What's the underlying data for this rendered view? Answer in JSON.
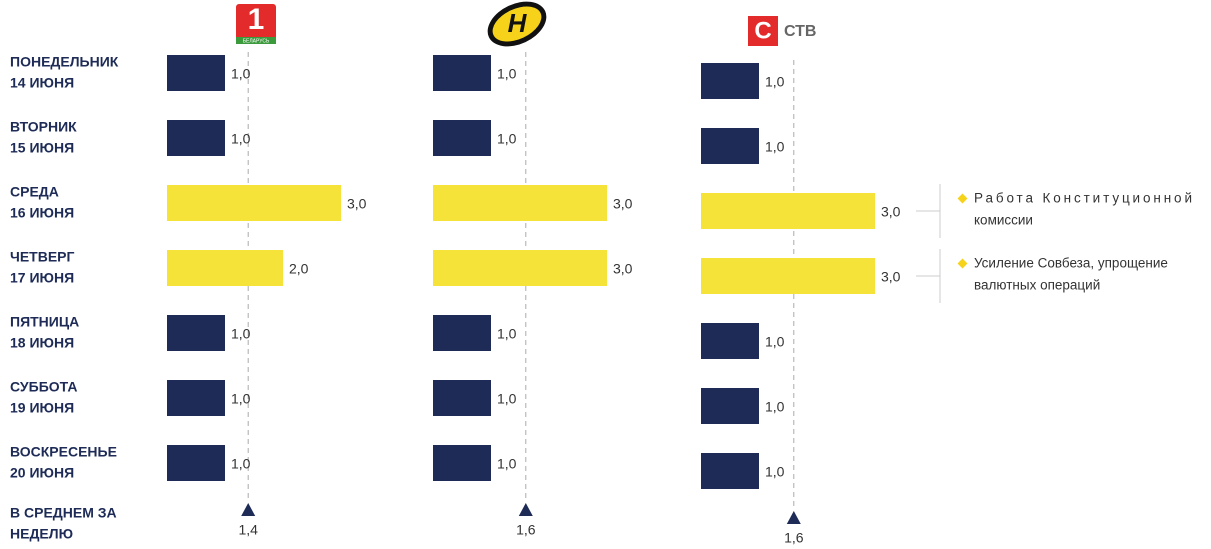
{
  "row_labels": [
    [
      "ПОНЕДЕЛЬНИК",
      "14 ИЮНЯ"
    ],
    [
      "ВТОРНИК",
      "15 ИЮНЯ"
    ],
    [
      "СРЕДА",
      "16 ИЮНЯ"
    ],
    [
      "ЧЕТВЕРГ",
      "17 ИЮНЯ"
    ],
    [
      "ПЯТНИЦА",
      "18 ИЮНЯ"
    ],
    [
      "СУББОТА",
      "19 ИЮНЯ"
    ],
    [
      "ВОСКРЕСЕНЬЕ",
      "20 ИЮНЯ"
    ]
  ],
  "average_label": [
    "В СРЕДНЕМ ЗА",
    "НЕДЕЛЮ"
  ],
  "chart_data": [
    {
      "type": "bar",
      "orientation": "horizontal",
      "title": "1",
      "title_sub": "БЕЛАРУСЬ",
      "values": [
        1,
        1,
        3,
        2,
        1,
        1,
        1
      ],
      "value_labels": [
        "1,0",
        "1,0",
        "3,0",
        "2,0",
        "1,0",
        "1,0",
        "1,0"
      ],
      "colors": [
        "#1d2b56",
        "#1d2b56",
        "#f6e33a",
        "#f6e33a",
        "#1d2b56",
        "#1d2b56",
        "#1d2b56"
      ],
      "xlim": [
        0,
        3
      ],
      "average": {
        "value": 1.4,
        "label": "1,4"
      },
      "annotations": []
    },
    {
      "type": "bar",
      "orientation": "horizontal",
      "title": "Н",
      "values": [
        1,
        1,
        3,
        3,
        1,
        1,
        1
      ],
      "value_labels": [
        "1,0",
        "1,0",
        "3,0",
        "3,0",
        "1,0",
        "1,0",
        "1,0"
      ],
      "colors": [
        "#1d2b56",
        "#1d2b56",
        "#f6e33a",
        "#f6e33a",
        "#1d2b56",
        "#1d2b56",
        "#1d2b56"
      ],
      "xlim": [
        0,
        3
      ],
      "average": {
        "value": 1.6,
        "label": "1,6"
      },
      "annotations": []
    },
    {
      "type": "bar",
      "orientation": "horizontal",
      "logo_letter": "С",
      "title": "СТВ",
      "values": [
        1,
        1,
        3,
        3,
        1,
        1,
        1
      ],
      "value_labels": [
        "1,0",
        "1,0",
        "3,0",
        "3,0",
        "1,0",
        "1,0",
        "1,0"
      ],
      "colors": [
        "#1d2b56",
        "#1d2b56",
        "#f6e33a",
        "#f6e33a",
        "#1d2b56",
        "#1d2b56",
        "#1d2b56"
      ],
      "xlim": [
        0,
        3
      ],
      "average": {
        "value": 1.6,
        "label": "1,6"
      },
      "annotations": [
        {
          "index": 2,
          "lines": [
            "Работа Конституционной",
            "комиссии"
          ]
        },
        {
          "index": 3,
          "lines": [
            "Усиление Совбеза, упрощение",
            "валютных операций"
          ]
        }
      ]
    }
  ]
}
